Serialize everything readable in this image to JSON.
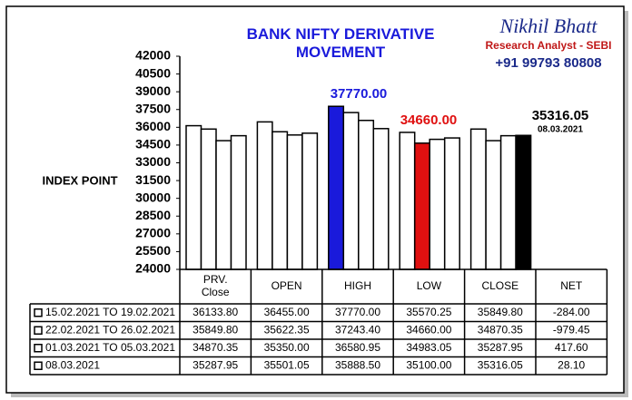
{
  "chart_data": {
    "type": "bar",
    "title": "BANK NIFTY DERIVATIVE MOVEMENT",
    "y_label": "INDEX POINT",
    "brand": {
      "name": "Nikhil Bhatt",
      "role": "Research Analyst - SEBI",
      "phone": "+91 99793 80808"
    },
    "categories": [
      "PRV. Close",
      "OPEN",
      "HIGH",
      "LOW",
      "CLOSE"
    ],
    "ylim": [
      24000,
      42000
    ],
    "yticks": [
      24000,
      25500,
      27000,
      28500,
      30000,
      31500,
      33000,
      34500,
      36000,
      37500,
      39000,
      40500,
      42000
    ],
    "grid": false,
    "series": [
      {
        "name": "15.02.2021 TO 19.02.2021",
        "colors": [
          "#ffffff",
          "#ffffff",
          "#1a1adb",
          "#ffffff",
          "#ffffff"
        ],
        "values": [
          36133.8,
          36455,
          37770,
          35570.25,
          35849.8
        ],
        "value_labels": [
          "36133.80",
          "36455.00",
          "37770.00",
          "35570.25",
          "35849.80"
        ]
      },
      {
        "name": "22.02.2021 TO 26.02.2021",
        "colors": [
          "#ffffff",
          "#ffffff",
          "#ffffff",
          "#e01010",
          "#ffffff"
        ],
        "values": [
          35849.8,
          35622.35,
          37243.4,
          34660,
          34870.35
        ],
        "value_labels": [
          "35849.80",
          "35622.35",
          "37243.40",
          "34660.00",
          "34870.35"
        ]
      },
      {
        "name": "01.03.2021 TO 05.03.2021",
        "colors": [
          "#ffffff",
          "#ffffff",
          "#ffffff",
          "#ffffff",
          "#ffffff"
        ],
        "values": [
          34870.35,
          35350,
          36580.95,
          34983.05,
          35287.95
        ],
        "value_labels": [
          "34870.35",
          "35350.00",
          "36580.95",
          "34983.05",
          "35287.95"
        ]
      },
      {
        "name": "08.03.2021",
        "colors": [
          "#ffffff",
          "#ffffff",
          "#ffffff",
          "#ffffff",
          "#000000"
        ],
        "values": [
          35287.95,
          35501.05,
          35888.5,
          35100,
          35316.05
        ],
        "value_labels": [
          "35287.95",
          "35501.05",
          "35888.50",
          "35100.00",
          "35316.05"
        ]
      }
    ],
    "net": {
      "name": "NET",
      "values": [
        -284,
        -979.45,
        417.6,
        28.1
      ],
      "value_labels": [
        "-284.00",
        "-979.45",
        "417.60",
        "28.10"
      ]
    },
    "annotations": [
      {
        "text": "37770.00",
        "color": "#1a1adb"
      },
      {
        "text": "34660.00",
        "color": "#e01010"
      },
      {
        "text": "35316.05",
        "color": "#000000"
      }
    ]
  }
}
